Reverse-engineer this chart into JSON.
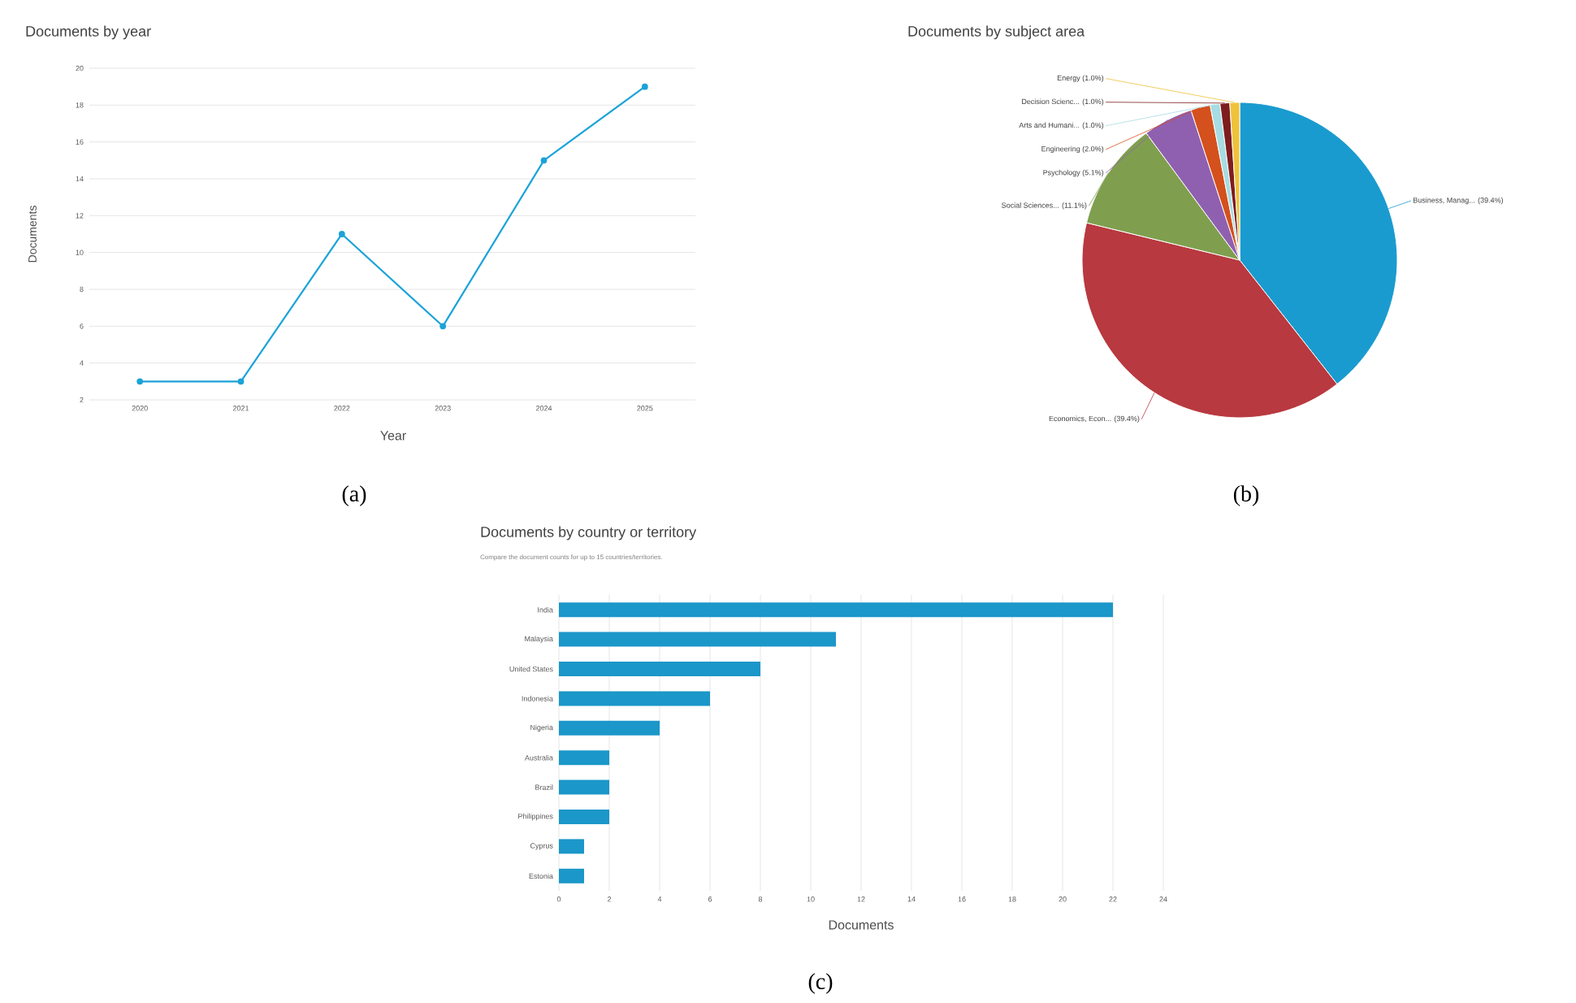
{
  "chart_data": [
    {
      "type": "line",
      "title": "Documents by year",
      "xlabel": "Year",
      "ylabel": "Documents",
      "categories": [
        "2020",
        "2021",
        "2022",
        "2023",
        "2024",
        "2025"
      ],
      "values": [
        3,
        3,
        11,
        6,
        15,
        19
      ],
      "color": "#1ba3d8",
      "ylim": [
        2,
        20
      ],
      "yticks": [
        2,
        4,
        6,
        8,
        10,
        12,
        14,
        16,
        18,
        20
      ],
      "grid": "y",
      "marker": "circle",
      "annotations": [
        "(a)"
      ]
    },
    {
      "type": "pie",
      "title": "Documents by subject area",
      "categories": [
        "Business, Manag... (39.4%)",
        "Economics, Econ... (39.4%)",
        "Social Sciences... (11.1%)",
        "Psychology (5.1%)",
        "Engineering (2.0%)",
        "Arts and Humani... (1.0%)",
        "Decision Scienc... (1.0%)",
        "Energy (1.0%)"
      ],
      "values": [
        39.4,
        39.4,
        11.1,
        5.1,
        2.0,
        1.0,
        1.0,
        1.0
      ],
      "colors": [
        "#1a9bcf",
        "#b8393f",
        "#7f9f4f",
        "#8f60b0",
        "#d4501c",
        "#a6dce2",
        "#7e1d1d",
        "#eec23a"
      ],
      "annotations": [
        "(b)"
      ]
    },
    {
      "type": "bar",
      "orientation": "horizontal",
      "title": "Documents by country or territory",
      "subtitle": "Compare the document counts for up to 15 countries/territories.",
      "xlabel": "Documents",
      "categories": [
        "India",
        "Malaysia",
        "United States",
        "Indonesia",
        "Nigeria",
        "Australia",
        "Brazil",
        "Philippines",
        "Cyprus",
        "Estonia"
      ],
      "values": [
        22,
        11,
        8,
        6,
        4,
        2,
        2,
        2,
        1,
        1
      ],
      "color": "#1b97c9",
      "xlim": [
        0,
        24
      ],
      "xticks": [
        0,
        2,
        4,
        6,
        8,
        10,
        12,
        14,
        16,
        18,
        20,
        22,
        24
      ],
      "grid": "x",
      "annotations": [
        "(c)"
      ]
    }
  ]
}
